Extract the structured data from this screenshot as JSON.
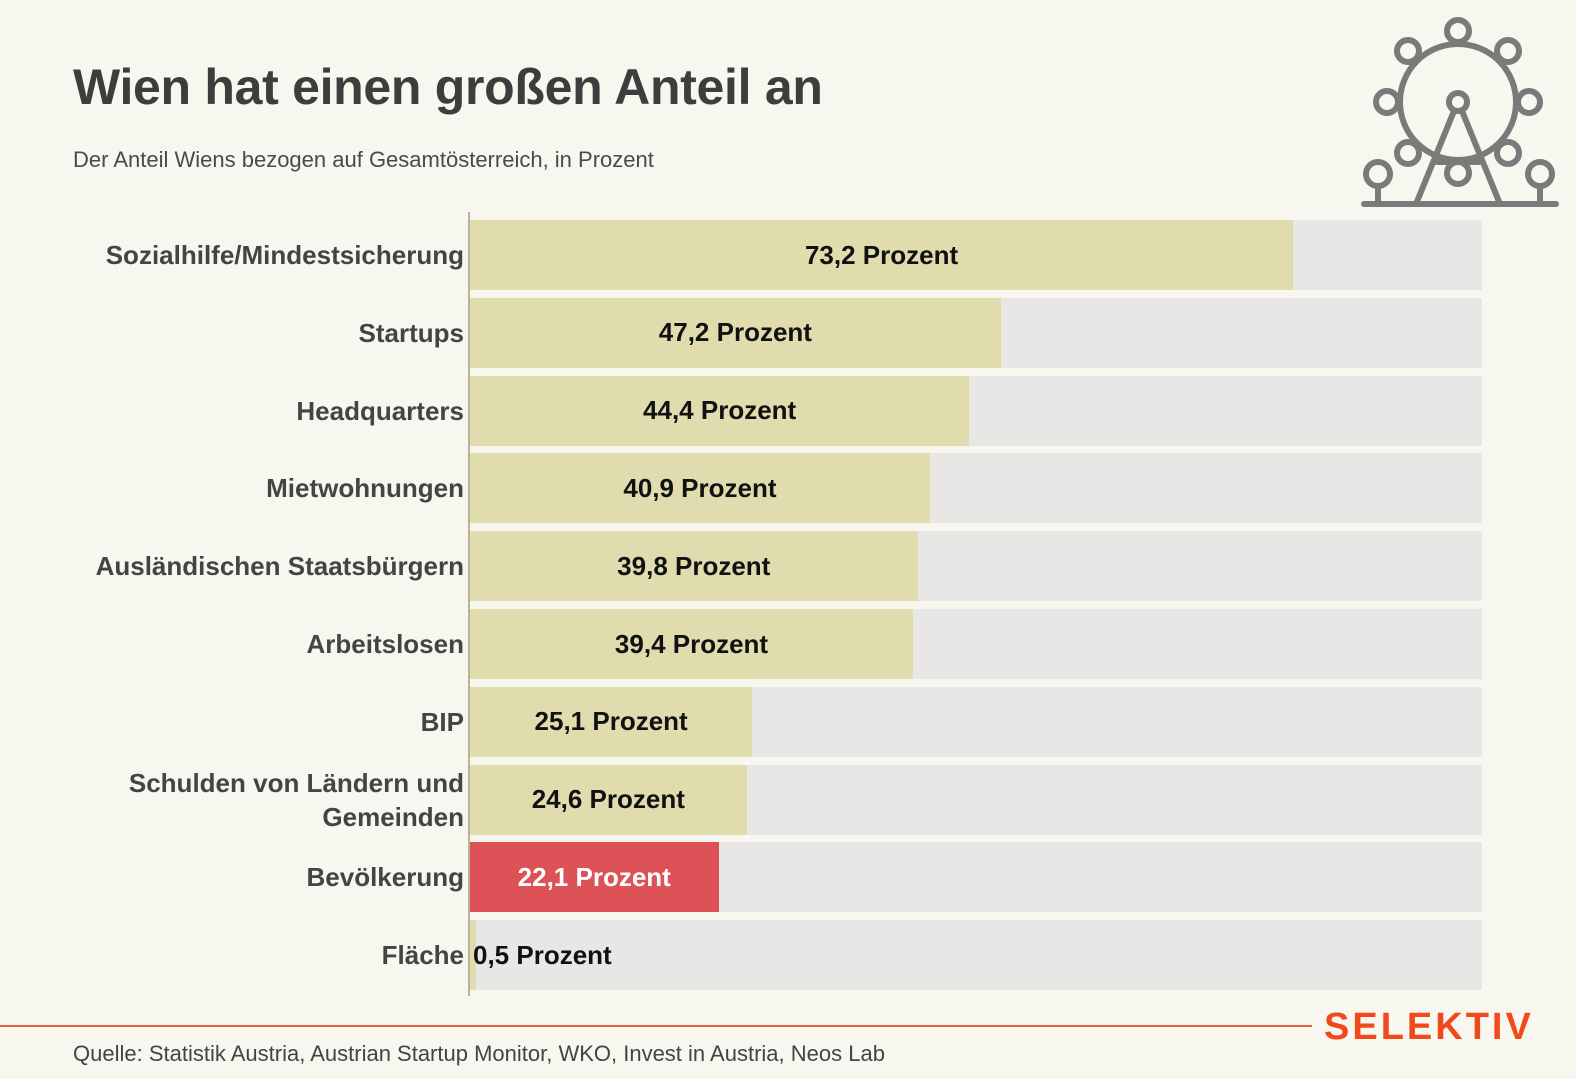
{
  "title": "Wien hat einen großen Anteil an",
  "subtitle": "Der Anteil Wiens bezogen auf Gesamtösterreich, in Prozent",
  "source": "Quelle: Statistik Austria, Austrian Startup Monitor, WKO, Invest in Austria, Neos Lab",
  "brand": "SELEKTIV",
  "icon": "ferris-wheel-icon",
  "colors": {
    "bar": "#e0dcae",
    "highlight": "#dc5257",
    "track": "#e9e7e5",
    "brand": "#f04a1c",
    "background": "#f7f6ef"
  },
  "chart_data": {
    "type": "bar",
    "orientation": "horizontal",
    "title": "Wien hat einen großen Anteil an",
    "subtitle": "Der Anteil Wiens bezogen auf Gesamtösterreich, in Prozent",
    "xlim": [
      0,
      90
    ],
    "grid": false,
    "categories": [
      "Sozialhilfe/Mindestsicherung",
      "Startups",
      "Headquarters",
      "Mietwohnungen",
      "Ausländischen Staatsbürgern",
      "Arbeitslosen",
      "BIP",
      "Schulden von Ländern und Gemeinden",
      "Bevölkerung",
      "Fläche"
    ],
    "values": [
      73.2,
      47.2,
      44.4,
      40.9,
      39.8,
      39.4,
      25.1,
      24.6,
      22.1,
      0.5
    ],
    "data_labels": [
      "73,2 Prozent",
      "47,2 Prozent",
      "44,4 Prozent",
      "40,9 Prozent",
      "39,8 Prozent",
      "39,4 Prozent",
      "25,1 Prozent",
      "24,6 Prozent",
      "22,1 Prozent",
      "0,5 Prozent"
    ],
    "highlighted_category": "Bevölkerung"
  }
}
